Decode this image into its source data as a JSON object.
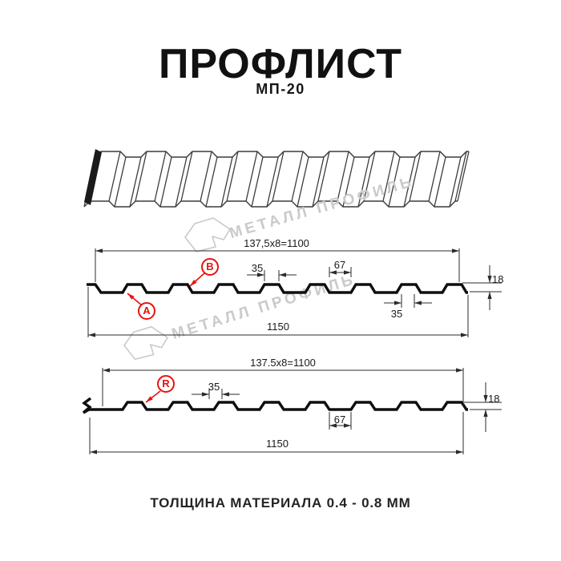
{
  "page": {
    "title": "ПРОФЛИСТ",
    "subtitle": "МП-20",
    "footer": "ТОЛЩИНА МАТЕРИАЛА 0.4 - 0.8 ММ"
  },
  "watermark": {
    "brand": "МЕТАЛЛ ПРОФИЛЬ"
  },
  "colors": {
    "accent_red": "#e8120f",
    "profile_black": "#0e0e0e",
    "dim_line": "#2b2b2b",
    "watermark_gray": "#cacaca"
  },
  "views": {
    "front_profile": {
      "marker_a": "A",
      "marker_b": "B",
      "dims": {
        "pitch_formula": "137,5x8=1100",
        "rib_top_width": "35",
        "valley_width": "67",
        "profile_height": "18",
        "rib_base_width": "35",
        "total_width": "1150"
      }
    },
    "reverse_profile": {
      "marker_r": "R",
      "dims": {
        "pitch_formula": "137.5x8=1100",
        "rib_top_width": "35",
        "valley_width": "67",
        "profile_height": "18",
        "total_width": "1150"
      }
    }
  }
}
